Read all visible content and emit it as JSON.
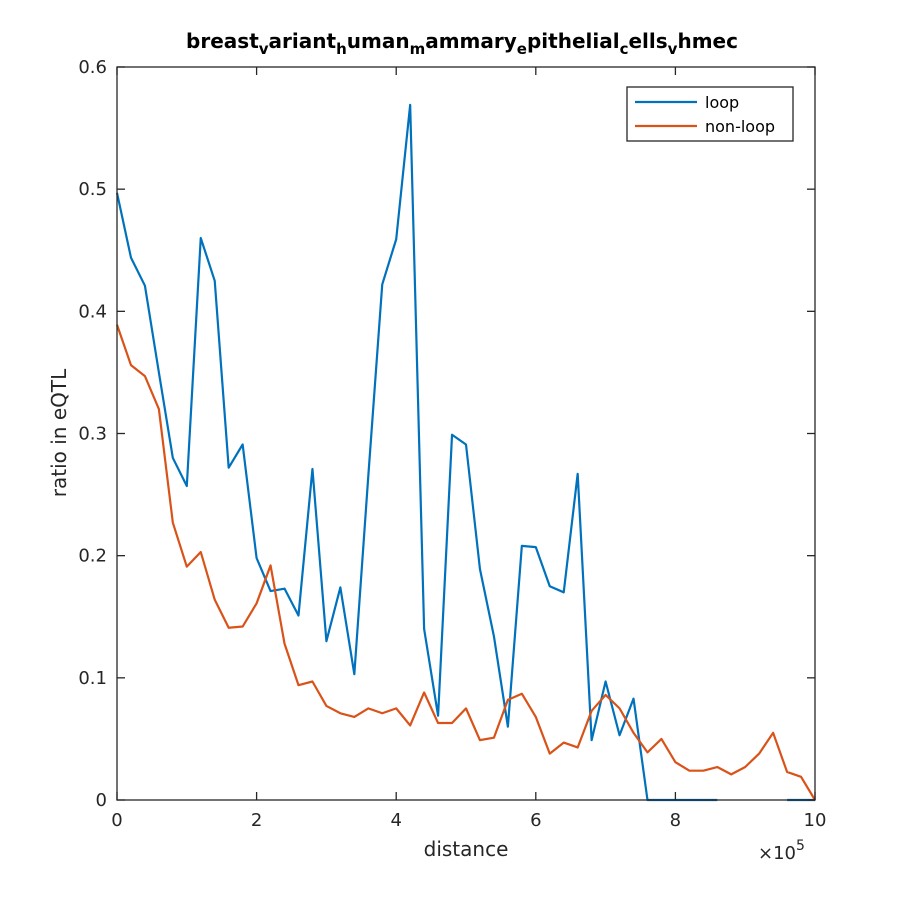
{
  "chart_data": {
    "type": "line",
    "title_parts": [
      {
        "t": "breast",
        "sub": false
      },
      {
        "t": "v",
        "sub": true
      },
      {
        "t": "ariant",
        "sub": false
      },
      {
        "t": "h",
        "sub": true
      },
      {
        "t": "uman",
        "sub": false
      },
      {
        "t": "m",
        "sub": true
      },
      {
        "t": "ammary",
        "sub": false
      },
      {
        "t": "e",
        "sub": true
      },
      {
        "t": "pithelial",
        "sub": false
      },
      {
        "t": "c",
        "sub": true
      },
      {
        "t": "ells",
        "sub": false
      },
      {
        "t": "v",
        "sub": true
      },
      {
        "t": "hmec",
        "sub": false
      }
    ],
    "xlabel": "distance",
    "ylabel": "ratio in eQTL",
    "x_exponent": {
      "base": "×10",
      "power": "5"
    },
    "xlim": [
      0,
      10
    ],
    "ylim": [
      0,
      0.6
    ],
    "xticks": [
      0,
      2,
      4,
      6,
      8,
      10
    ],
    "yticks": [
      0,
      0.1,
      0.2,
      0.3,
      0.4,
      0.5,
      0.6
    ],
    "xtick_labels": [
      "0",
      "2",
      "4",
      "6",
      "8",
      "10"
    ],
    "ytick_labels": [
      "0",
      "0.1",
      "0.2",
      "0.3",
      "0.4",
      "0.5",
      "0.6"
    ],
    "x": [
      0,
      0.2,
      0.4,
      0.6,
      0.8,
      1.0,
      1.2,
      1.4,
      1.6,
      1.8,
      2.0,
      2.2,
      2.4,
      2.6,
      2.8,
      3.0,
      3.2,
      3.4,
      3.6,
      3.8,
      4.0,
      4.2,
      4.4,
      4.6,
      4.8,
      5.0,
      5.2,
      5.4,
      5.6,
      5.8,
      6.0,
      6.2,
      6.4,
      6.6,
      6.8,
      7.0,
      7.2,
      7.4,
      7.6,
      7.8,
      8.0,
      8.2,
      8.4,
      8.6,
      8.8,
      9.0,
      9.2,
      9.4,
      9.6,
      9.8,
      10.0
    ],
    "series": [
      {
        "name": "loop",
        "color": "#0072BD",
        "values": [
          0.497,
          0.444,
          0.421,
          0.35,
          0.28,
          0.257,
          0.46,
          0.425,
          0.272,
          0.291,
          0.198,
          0.171,
          0.173,
          0.151,
          0.271,
          0.13,
          0.174,
          0.103,
          0.265,
          0.422,
          0.459,
          0.569,
          0.14,
          0.069,
          0.299,
          0.291,
          0.189,
          0.134,
          0.06,
          0.208,
          0.207,
          0.175,
          0.17,
          0.267,
          0.049,
          0.097,
          0.053,
          0.083,
          0,
          0,
          0,
          0,
          0,
          0,
          null,
          null,
          null,
          null,
          0,
          0,
          0
        ]
      },
      {
        "name": "non-loop",
        "color": "#D95319",
        "values": [
          0.389,
          0.356,
          0.347,
          0.32,
          0.227,
          0.191,
          0.203,
          0.164,
          0.141,
          0.142,
          0.161,
          0.192,
          0.128,
          0.094,
          0.097,
          0.077,
          0.071,
          0.068,
          0.075,
          0.071,
          0.075,
          0.061,
          0.088,
          0.063,
          0.063,
          0.075,
          0.049,
          0.051,
          0.082,
          0.087,
          0.068,
          0.038,
          0.047,
          0.043,
          0.073,
          0.086,
          0.075,
          0.055,
          0.039,
          0.05,
          0.031,
          0.024,
          0.024,
          0.027,
          0.021,
          0.027,
          0.038,
          0.055,
          0.023,
          0.019,
          0.0
        ]
      }
    ],
    "legend_position": "top-right",
    "grid": false
  }
}
